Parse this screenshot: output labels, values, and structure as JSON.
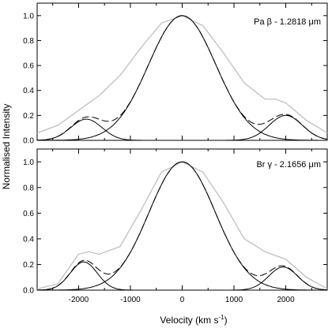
{
  "chart_data": {
    "type": "line",
    "xlabel": "Velocity (km s",
    "xlabel_exponent": "-1",
    "xlabel_close": ")",
    "ylabel": "Normalised Intensity",
    "xlim": [
      -2800,
      2800
    ],
    "ylim": [
      0,
      1.1
    ],
    "x_ticks": [
      -2000,
      -1000,
      0,
      1000,
      2000
    ],
    "x_tick_labels": [
      "-2000",
      "-1000",
      "0",
      "1000",
      "2000"
    ],
    "y_ticks": [
      0,
      0.2,
      0.4,
      0.6,
      0.8,
      1.0
    ],
    "y_tick_labels": [
      "0.0",
      "0.2",
      "0.4",
      "0.6",
      "0.8",
      "1.0"
    ],
    "grid": false,
    "panels": [
      {
        "label": "Pa β - 1.2818 μm",
        "components": [
          {
            "center": 0,
            "amplitude": 1.0,
            "sigma": 650
          },
          {
            "center": -1850,
            "amplitude": 0.17,
            "sigma": 300
          },
          {
            "center": 2000,
            "amplitude": 0.2,
            "sigma": 320
          }
        ],
        "observed_points": {
          "x": [
            -2800,
            -2400,
            -2000,
            -1600,
            -1200,
            -800,
            -400,
            0,
            400,
            800,
            1200,
            1600,
            1800,
            2000,
            2400,
            2800
          ],
          "y": [
            0.06,
            0.12,
            0.24,
            0.36,
            0.52,
            0.74,
            0.94,
            1.0,
            0.92,
            0.7,
            0.46,
            0.33,
            0.33,
            0.3,
            0.16,
            0.06
          ]
        }
      },
      {
        "label": "Br γ - 2.1656 μm",
        "components": [
          {
            "center": 0,
            "amplitude": 1.0,
            "sigma": 640
          },
          {
            "center": -1900,
            "amplitude": 0.22,
            "sigma": 260
          },
          {
            "center": 1950,
            "amplitude": 0.18,
            "sigma": 280
          }
        ],
        "observed_points": {
          "x": [
            -2800,
            -2400,
            -2000,
            -1800,
            -1600,
            -1200,
            -800,
            -400,
            0,
            400,
            800,
            1200,
            1600,
            2000,
            2400,
            2800
          ],
          "y": [
            0.01,
            0.05,
            0.28,
            0.3,
            0.28,
            0.34,
            0.62,
            0.92,
            1.0,
            0.92,
            0.68,
            0.4,
            0.3,
            0.24,
            0.1,
            0.01
          ]
        }
      }
    ],
    "colors": {
      "axis": "#000000",
      "component": "#000000",
      "sum_dashed": "#000000",
      "observed": "#bbbbbb"
    }
  }
}
